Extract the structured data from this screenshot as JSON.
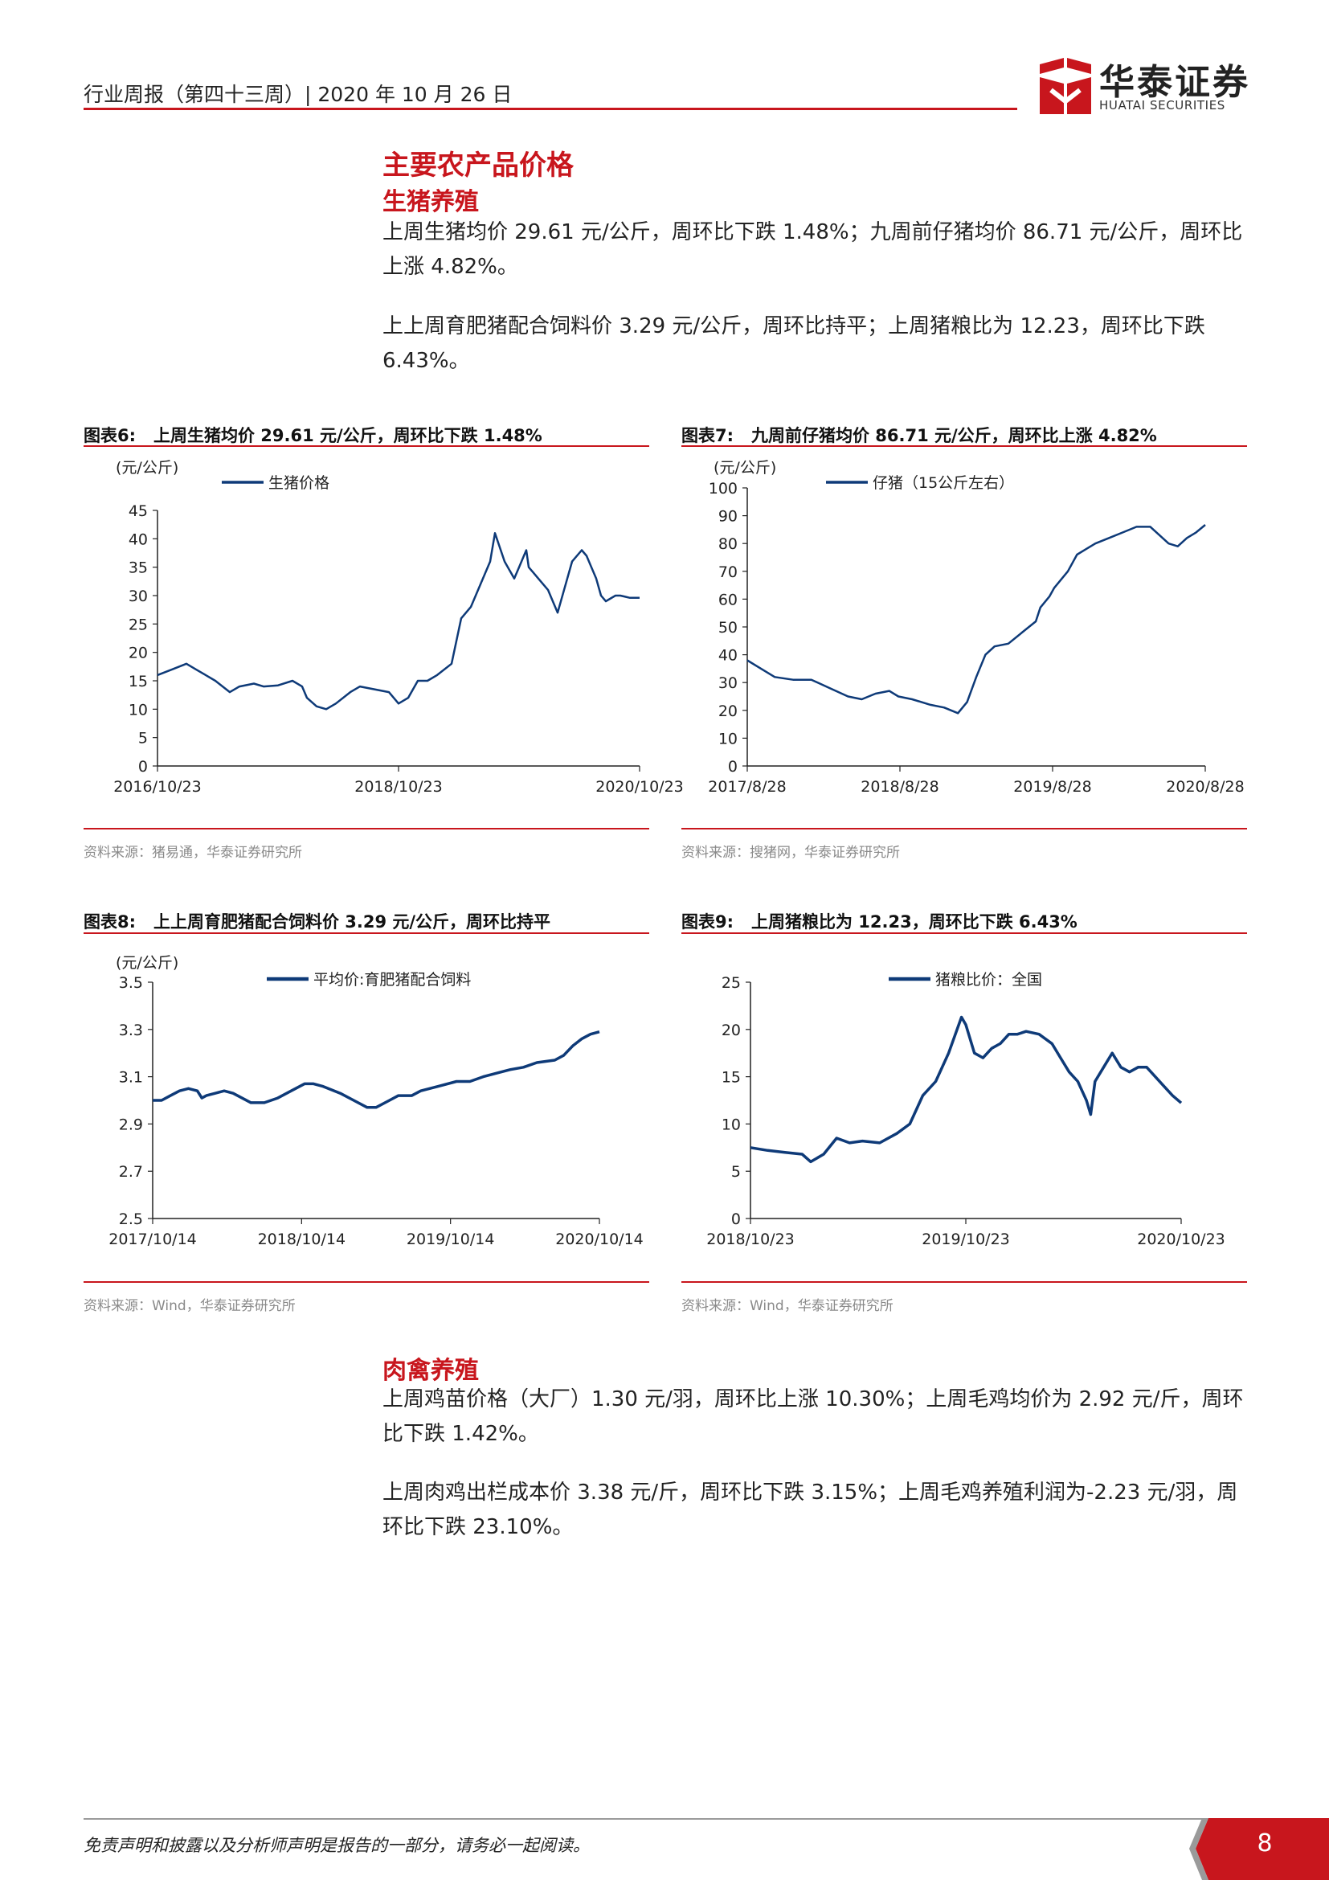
{
  "header": {
    "report": "行业周报（第四十三周）| 2020 年 10 月 26 日",
    "logo_cn": "华泰证券",
    "logo_en": "HUATAI SECURITIES"
  },
  "section": {
    "title": "主要农产品价格",
    "hog": {
      "heading": "生猪养殖",
      "para1": "上周生猪均价 29.61 元/公斤，周环比下跌 1.48%；九周前仔猪均价 86.71 元/公斤，周环比上涨 4.82%。",
      "para2": "上上周育肥猪配合饲料价 3.29 元/公斤，周环比持平；上周猪粮比为 12.23，周环比下跌 6.43%。"
    },
    "poultry": {
      "heading": "肉禽养殖",
      "para1": "上周鸡苗价格（大厂）1.30 元/羽，周环比上涨 10.30%；上周毛鸡均价为 2.92 元/斤，周环比下跌 1.42%。",
      "para2": "上周肉鸡出栏成本价 3.38 元/斤，周环比下跌 3.15%；上周毛鸡养殖利润为-2.23 元/羽，周环比下跌 23.10%。"
    }
  },
  "figures": {
    "fig6": {
      "label": "图表6:",
      "title": "上周生猪均价 29.61 元/公斤，周环比下跌 1.48%",
      "source": "资料来源：猪易通，华泰证券研究所"
    },
    "fig7": {
      "label": "图表7:",
      "title": "九周前仔猪均价 86.71 元/公斤，周环比上涨 4.82%",
      "source": "资料来源：搜猪网，华泰证券研究所"
    },
    "fig8": {
      "label": "图表8:",
      "title": "上上周育肥猪配合饲料价 3.29 元/公斤，周环比持平",
      "source": "资料来源：Wind，华泰证券研究所"
    },
    "fig9": {
      "label": "图表9:",
      "title": "上周猪粮比为 12.23，周环比下跌 6.43%",
      "source": "资料来源：Wind，华泰证券研究所"
    }
  },
  "chart_data": [
    {
      "id": "fig6",
      "type": "line",
      "line_color": "#0e3a78",
      "ylabel": "(元/公斤)",
      "legend": "生猪价格",
      "ylim": [
        0,
        45
      ],
      "yticks": [
        0,
        5,
        10,
        15,
        20,
        25,
        30,
        35,
        40,
        45
      ],
      "xticks": [
        "2016/10/23",
        "2018/10/23",
        "2020/10/23"
      ],
      "xrange": [
        0,
        1
      ],
      "series": [
        {
          "name": "生猪价格",
          "x": [
            0,
            0.03,
            0.06,
            0.08,
            0.1,
            0.12,
            0.15,
            0.17,
            0.2,
            0.22,
            0.25,
            0.28,
            0.3,
            0.31,
            0.33,
            0.35,
            0.37,
            0.4,
            0.42,
            0.45,
            0.48,
            0.5,
            0.52,
            0.54,
            0.56,
            0.58,
            0.61,
            0.63,
            0.65,
            0.67,
            0.69,
            0.7,
            0.72,
            0.74,
            0.75,
            0.76,
            0.765,
            0.77,
            0.78,
            0.79,
            0.81,
            0.82,
            0.83,
            0.85,
            0.86,
            0.88,
            0.89,
            0.9,
            0.91,
            0.92,
            0.93,
            0.94,
            0.95,
            0.96,
            0.97,
            0.98,
            0.99,
            1.0
          ],
          "y": [
            16,
            17,
            18,
            17,
            16,
            15,
            13,
            14,
            14.5,
            14,
            14.2,
            15,
            14,
            12,
            10.5,
            10,
            11,
            13,
            14,
            13.5,
            13,
            11,
            12,
            15,
            15,
            16,
            18,
            26,
            28,
            32,
            36,
            41,
            36,
            33,
            35,
            37,
            38,
            35,
            34,
            33,
            31,
            29,
            27,
            33,
            36,
            38,
            37,
            35,
            33,
            30,
            29,
            29.5,
            30,
            30,
            29.8,
            29.6,
            29.61,
            29.61
          ]
        }
      ]
    },
    {
      "id": "fig7",
      "type": "line",
      "line_color": "#0e3a78",
      "ylabel": "(元/公斤)",
      "legend": "仔猪（15公斤左右）",
      "ylim": [
        0,
        100
      ],
      "yticks": [
        0,
        10,
        20,
        30,
        40,
        50,
        60,
        70,
        80,
        90,
        100
      ],
      "xticks": [
        "2017/8/28",
        "2018/8/28",
        "2019/8/28",
        "2020/8/28"
      ],
      "xrange": [
        0,
        1
      ],
      "series": [
        {
          "name": "仔猪（15公斤左右）",
          "x": [
            0,
            0.03,
            0.06,
            0.1,
            0.14,
            0.18,
            0.22,
            0.25,
            0.28,
            0.31,
            0.33,
            0.36,
            0.4,
            0.43,
            0.46,
            0.48,
            0.5,
            0.52,
            0.54,
            0.57,
            0.6,
            0.63,
            0.64,
            0.66,
            0.67,
            0.7,
            0.72,
            0.74,
            0.76,
            0.79,
            0.82,
            0.85,
            0.88,
            0.9,
            0.92,
            0.94,
            0.96,
            0.98,
            1.0
          ],
          "y": [
            38,
            35,
            32,
            31,
            31,
            28,
            25,
            24,
            26,
            27,
            25,
            24,
            22,
            21,
            19,
            23,
            32,
            40,
            43,
            44,
            48,
            52,
            57,
            61,
            64,
            70,
            76,
            78,
            80,
            82,
            84,
            86,
            86,
            83,
            80,
            79,
            82,
            84,
            86.71
          ]
        }
      ]
    },
    {
      "id": "fig8",
      "type": "line",
      "line_color": "#0e3a78",
      "ylabel": "(元/公斤)",
      "legend": "平均价:育肥猪配合饲料",
      "ylim": [
        2.5,
        3.5
      ],
      "yticks": [
        2.5,
        2.7,
        2.9,
        3.1,
        3.3,
        3.5
      ],
      "xticks": [
        "2017/10/14",
        "2018/10/14",
        "2019/10/14",
        "2020/10/14"
      ],
      "xrange": [
        0,
        1
      ],
      "series": [
        {
          "name": "平均价:育肥猪配合饲料",
          "x": [
            0,
            0.02,
            0.04,
            0.06,
            0.08,
            0.1,
            0.11,
            0.12,
            0.14,
            0.16,
            0.18,
            0.2,
            0.22,
            0.25,
            0.28,
            0.31,
            0.34,
            0.36,
            0.38,
            0.42,
            0.45,
            0.48,
            0.5,
            0.53,
            0.55,
            0.58,
            0.6,
            0.64,
            0.68,
            0.71,
            0.74,
            0.78,
            0.8,
            0.83,
            0.86,
            0.9,
            0.92,
            0.94,
            0.96,
            0.98,
            1.0
          ],
          "y": [
            3.0,
            3.0,
            3.02,
            3.04,
            3.05,
            3.04,
            3.01,
            3.02,
            3.03,
            3.04,
            3.03,
            3.01,
            2.99,
            2.99,
            3.01,
            3.04,
            3.07,
            3.07,
            3.06,
            3.03,
            3.0,
            2.97,
            2.97,
            3.0,
            3.02,
            3.02,
            3.04,
            3.06,
            3.08,
            3.08,
            3.1,
            3.12,
            3.13,
            3.14,
            3.16,
            3.17,
            3.19,
            3.23,
            3.26,
            3.28,
            3.29
          ]
        }
      ]
    },
    {
      "id": "fig9",
      "type": "line",
      "line_color": "#0e3a78",
      "ylabel": "",
      "legend": "猪粮比价：全国",
      "ylim": [
        0,
        25
      ],
      "yticks": [
        0,
        5,
        10,
        15,
        20,
        25
      ],
      "xticks": [
        "2018/10/23",
        "2019/10/23",
        "2020/10/23"
      ],
      "xrange": [
        0,
        1
      ],
      "series": [
        {
          "name": "猪粮比价：全国",
          "x": [
            0,
            0.04,
            0.08,
            0.12,
            0.14,
            0.17,
            0.2,
            0.23,
            0.26,
            0.3,
            0.34,
            0.37,
            0.4,
            0.43,
            0.46,
            0.49,
            0.5,
            0.52,
            0.54,
            0.56,
            0.58,
            0.6,
            0.62,
            0.64,
            0.67,
            0.7,
            0.72,
            0.74,
            0.76,
            0.77,
            0.78,
            0.79,
            0.8,
            0.82,
            0.84,
            0.86,
            0.88,
            0.9,
            0.92,
            0.94,
            0.96,
            0.98,
            1.0
          ],
          "y": [
            7.5,
            7.2,
            7.0,
            6.8,
            6.0,
            6.8,
            8.5,
            8.0,
            8.2,
            8.0,
            9.0,
            10.0,
            13.0,
            14.5,
            17.5,
            21.3,
            20.5,
            17.5,
            17.0,
            18.0,
            18.5,
            19.5,
            19.5,
            19.8,
            19.5,
            18.5,
            17.0,
            15.5,
            14.5,
            13.5,
            12.5,
            11.0,
            14.5,
            16.0,
            17.5,
            16.0,
            15.5,
            16.0,
            16.0,
            15.0,
            14.0,
            13.0,
            12.23
          ]
        }
      ]
    }
  ],
  "footer": {
    "disclaimer": "免责声明和披露以及分析师声明是报告的一部分，请务必一起阅读。",
    "page": "8"
  }
}
